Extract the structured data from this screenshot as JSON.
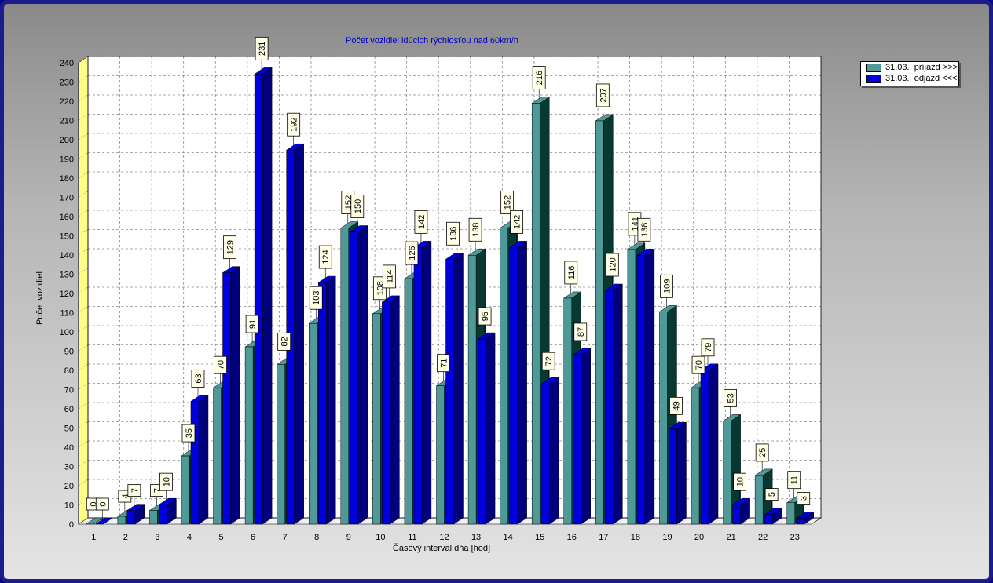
{
  "chart_data": {
    "type": "bar",
    "title": "Počet vozidiel idúcich rýchlosťou nad 60km/h",
    "xlabel": "Časový interval dňa [hod]",
    "ylabel": "Počet vozidiel",
    "ylim": [
      0,
      240
    ],
    "ytick_step": 10,
    "grid": true,
    "legend_position": "top-right",
    "categories": [
      "1",
      "2",
      "3",
      "4",
      "5",
      "6",
      "7",
      "8",
      "9",
      "10",
      "11",
      "12",
      "13",
      "14",
      "15",
      "16",
      "17",
      "18",
      "19",
      "20",
      "21",
      "22",
      "23"
    ],
    "series": [
      {
        "name": "31.03.  príjazd >>>",
        "color": "#4f9a98",
        "dark": "#073832",
        "values": [
          0,
          4,
          7,
          35,
          70,
          91,
          82,
          103,
          152,
          108,
          126,
          71,
          138,
          152,
          216,
          116,
          207,
          141,
          109,
          70,
          53,
          25,
          11
        ]
      },
      {
        "name": "31.03.  odjazd <<<",
        "color": "#0000dd",
        "dark": "#00007a",
        "values": [
          0,
          7,
          10,
          63,
          129,
          231,
          192,
          124,
          150,
          114,
          142,
          136,
          95,
          142,
          72,
          87,
          120,
          138,
          49,
          79,
          10,
          5,
          3
        ]
      }
    ]
  }
}
